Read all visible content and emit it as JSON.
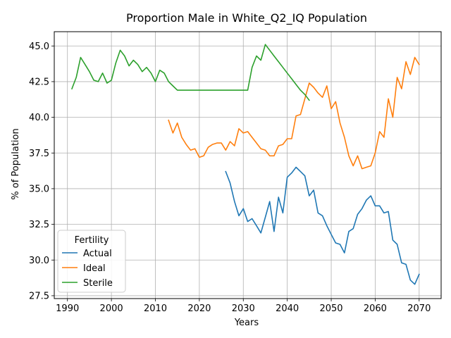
{
  "chart_data": {
    "type": "line",
    "title": "Proportion Male in White_Q2_IQ Population",
    "xlabel": "Years",
    "ylabel": "% of Population",
    "xlim": [
      1987,
      2075
    ],
    "ylim": [
      27.3,
      46.0
    ],
    "xticks": [
      1990,
      2000,
      2010,
      2020,
      2030,
      2040,
      2050,
      2060,
      2070
    ],
    "yticks": [
      27.5,
      30.0,
      32.5,
      35.0,
      37.5,
      40.0,
      42.5,
      45.0
    ],
    "xtick_labels": [
      "1990",
      "2000",
      "2010",
      "2020",
      "2030",
      "2040",
      "2050",
      "2060",
      "2070"
    ],
    "ytick_labels": [
      "27.5",
      "30.0",
      "32.5",
      "35.0",
      "37.5",
      "40.0",
      "42.5",
      "45.0"
    ],
    "grid": true,
    "legend": {
      "title": "Fertility",
      "placement": "lower-left"
    },
    "series": [
      {
        "name": "Actual",
        "color": "#1f77b4",
        "x": [
          2026,
          2027,
          2028,
          2029,
          2030,
          2031,
          2032,
          2033,
          2034,
          2035,
          2036,
          2037,
          2038,
          2039,
          2040,
          2041,
          2042,
          2043,
          2044,
          2045,
          2046,
          2047,
          2048,
          2049,
          2050,
          2051,
          2052,
          2053,
          2054,
          2055,
          2056,
          2057,
          2058,
          2059,
          2060,
          2061,
          2062,
          2063,
          2064,
          2065,
          2066,
          2067,
          2068,
          2069,
          2070
        ],
        "y": [
          36.2,
          35.4,
          34.1,
          33.1,
          33.6,
          32.7,
          32.9,
          32.4,
          31.9,
          33.0,
          34.1,
          32.0,
          34.4,
          33.3,
          35.8,
          36.1,
          36.5,
          36.2,
          35.9,
          34.5,
          34.9,
          33.3,
          33.1,
          32.4,
          31.8,
          31.2,
          31.1,
          30.5,
          32.0,
          32.2,
          33.2,
          33.6,
          34.2,
          34.5,
          33.8,
          33.8,
          33.3,
          33.4,
          31.4,
          31.1,
          29.8,
          29.7,
          28.6,
          28.3,
          29.0
        ]
      },
      {
        "name": "Ideal",
        "color": "#ff7f0e",
        "x": [
          2013,
          2014,
          2015,
          2016,
          2017,
          2018,
          2019,
          2020,
          2021,
          2022,
          2023,
          2024,
          2025,
          2026,
          2027,
          2028,
          2029,
          2030,
          2031,
          2032,
          2033,
          2034,
          2035,
          2036,
          2037,
          2038,
          2039,
          2040,
          2041,
          2042,
          2043,
          2044,
          2045,
          2046,
          2047,
          2048,
          2049,
          2050,
          2051,
          2052,
          2053,
          2054,
          2055,
          2056,
          2057,
          2058,
          2059,
          2060,
          2061,
          2062,
          2063,
          2064,
          2065,
          2066,
          2067,
          2068,
          2069,
          2070
        ],
        "y": [
          39.8,
          38.9,
          39.6,
          38.6,
          38.1,
          37.7,
          37.8,
          37.2,
          37.3,
          37.9,
          38.1,
          38.2,
          38.2,
          37.7,
          38.3,
          38.0,
          39.2,
          38.9,
          39.0,
          38.6,
          38.2,
          37.8,
          37.7,
          37.3,
          37.3,
          38.0,
          38.1,
          38.5,
          38.5,
          40.1,
          40.2,
          41.3,
          42.4,
          42.1,
          41.7,
          41.4,
          42.2,
          40.6,
          41.1,
          39.6,
          38.6,
          37.3,
          36.6,
          37.3,
          36.4,
          36.5,
          36.6,
          37.5,
          39.0,
          38.6,
          41.3,
          40.0,
          42.8,
          42.0,
          43.9,
          43.0,
          44.2,
          43.7
        ]
      },
      {
        "name": "Sterile",
        "color": "#2ca02c",
        "x": [
          1991,
          1992,
          1993,
          1994,
          1995,
          1996,
          1997,
          1998,
          1999,
          2000,
          2001,
          2002,
          2003,
          2004,
          2005,
          2006,
          2007,
          2008,
          2009,
          2010,
          2011,
          2012,
          2013,
          2014,
          2015,
          2016,
          2017,
          2018,
          2019,
          2020,
          2021,
          2022,
          2023,
          2024,
          2025,
          2026,
          2027,
          2028,
          2029,
          2030,
          2031,
          2032,
          2033,
          2034,
          2035,
          2036,
          2037,
          2038,
          2039,
          2040,
          2041,
          2042,
          2043,
          2044,
          2045
        ],
        "y": [
          42.0,
          42.8,
          44.2,
          43.7,
          43.2,
          42.6,
          42.5,
          43.1,
          42.4,
          42.6,
          43.8,
          44.7,
          44.3,
          43.6,
          44.0,
          43.7,
          43.2,
          43.5,
          43.1,
          42.5,
          43.3,
          43.1,
          42.5,
          42.2,
          41.9,
          41.9,
          41.9,
          41.9,
          41.9,
          41.9,
          41.9,
          41.9,
          41.9,
          41.9,
          41.9,
          41.9,
          41.9,
          41.9,
          41.9,
          41.9,
          41.9,
          43.5,
          44.3,
          44.0,
          45.1,
          44.7,
          44.3,
          43.9,
          43.5,
          43.1,
          42.7,
          42.3,
          41.9,
          41.6,
          41.2
        ]
      }
    ]
  }
}
